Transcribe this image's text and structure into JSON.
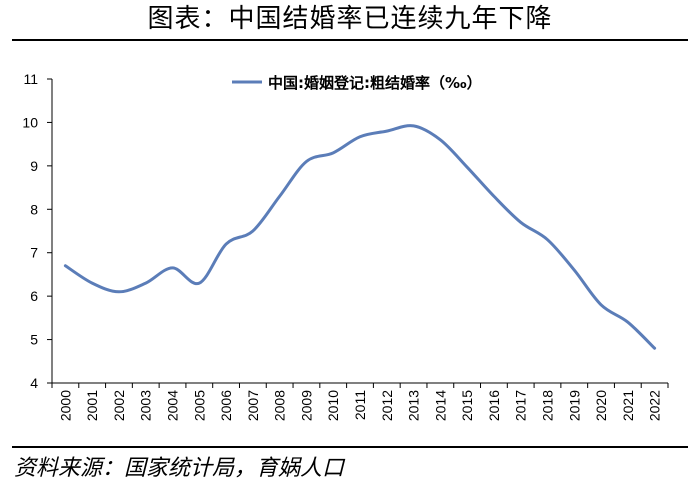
{
  "title": "图表：中国结婚率已连续九年下降",
  "source": "资料来源：国家统计局，育娲人口",
  "colors": {
    "series": "#5b7db8",
    "axis": "#000000"
  },
  "chart_data": {
    "type": "line",
    "title": "图表：中国结婚率已连续九年下降",
    "xlabel": "",
    "ylabel": "",
    "legend": "top-center",
    "grid": false,
    "ylim": [
      4,
      11
    ],
    "yticks": [
      "4",
      "5",
      "6",
      "7",
      "8",
      "9",
      "10",
      "11"
    ],
    "categories": [
      "2000",
      "2001",
      "2002",
      "2003",
      "2004",
      "2005",
      "2006",
      "2007",
      "2008",
      "2009",
      "2010",
      "2011",
      "2012",
      "2013",
      "2014",
      "2015",
      "2016",
      "2017",
      "2018",
      "2019",
      "2020",
      "2021",
      "2022"
    ],
    "series": [
      {
        "name": "中国:婚姻登记:粗结婚率（‰）",
        "values": [
          6.7,
          6.3,
          6.1,
          6.3,
          6.65,
          6.3,
          7.2,
          7.5,
          8.3,
          9.1,
          9.3,
          9.67,
          9.8,
          9.92,
          9.6,
          8.97,
          8.3,
          7.7,
          7.3,
          6.6,
          5.8,
          5.4,
          4.8
        ]
      }
    ]
  }
}
